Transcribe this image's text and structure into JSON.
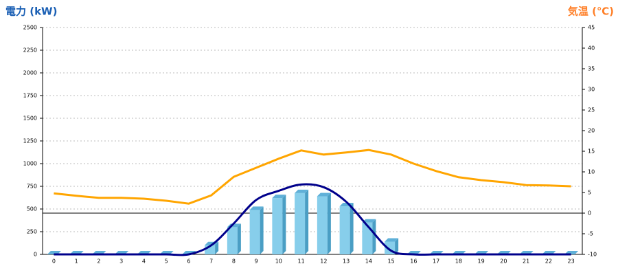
{
  "chart_data": {
    "type": "bar-line",
    "y_title": "電力 (kW)",
    "y2_title": "気温 (℃)",
    "categories": [
      "0",
      "1",
      "2",
      "3",
      "4",
      "5",
      "6",
      "7",
      "8",
      "9",
      "10",
      "11",
      "12",
      "13",
      "14",
      "15",
      "16",
      "17",
      "18",
      "19",
      "20",
      "21",
      "22",
      "23"
    ],
    "ylim": [
      0,
      2500
    ],
    "yticks": [
      0,
      250,
      500,
      750,
      1000,
      1250,
      1500,
      1750,
      2000,
      2250,
      2500
    ],
    "y2lim": [
      -10,
      45
    ],
    "y2ticks": [
      -10,
      -5,
      0,
      5,
      10,
      15,
      20,
      25,
      30,
      35,
      40,
      45
    ],
    "grid": true,
    "series": [
      {
        "type": "bar",
        "color": "#87ceeb",
        "values": [
          0,
          0,
          0,
          0,
          0,
          0,
          0,
          100,
          300,
          490,
          620,
          675,
          640,
          530,
          350,
          140,
          0,
          0,
          0,
          0,
          0,
          0,
          0,
          0
        ]
      },
      {
        "type": "line",
        "color": "#00008b",
        "values": [
          0,
          0,
          0,
          0,
          0,
          0,
          0,
          100,
          340,
          600,
          700,
          770,
          740,
          580,
          300,
          40,
          0,
          0,
          0,
          0,
          0,
          0,
          0,
          0
        ]
      },
      {
        "type": "line",
        "axis": "y2",
        "color": "#ffa500",
        "values": [
          4.8,
          4.2,
          3.7,
          3.7,
          3.5,
          3.0,
          2.3,
          4.3,
          8.8,
          11,
          13.2,
          15.2,
          14.2,
          14.7,
          15.3,
          14.2,
          12,
          10.2,
          8.7,
          8,
          7.5,
          6.8,
          6.7,
          6.5
        ]
      }
    ]
  }
}
